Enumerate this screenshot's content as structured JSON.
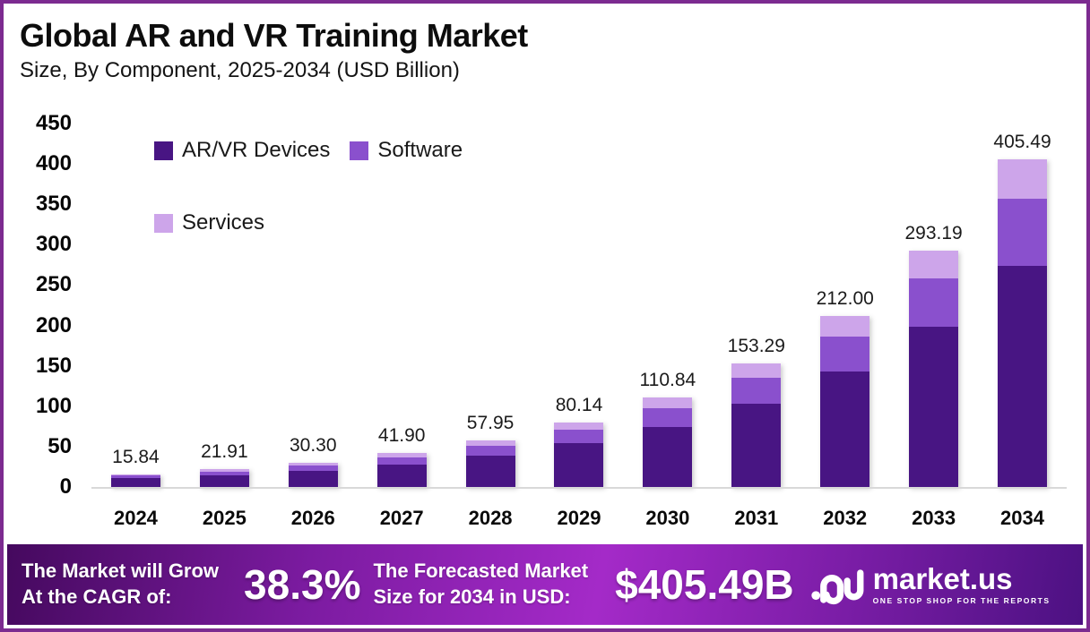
{
  "header": {
    "title": "Global AR and VR Training Market",
    "subtitle": "Size, By Component, 2025-2034 (USD Billion)"
  },
  "chart_data": {
    "type": "bar",
    "stacked": true,
    "title": "Global AR and VR Training Market Size, By Component, 2025-2034 (USD Billion)",
    "categories": [
      "2024",
      "2025",
      "2026",
      "2027",
      "2028",
      "2029",
      "2030",
      "2031",
      "2032",
      "2033",
      "2034"
    ],
    "series": [
      {
        "name": "AR/VR Devices",
        "color": "#481583",
        "values": [
          10.69,
          14.79,
          20.45,
          28.28,
          39.12,
          54.09,
          74.82,
          103.47,
          143.1,
          197.9,
          273.71
        ]
      },
      {
        "name": "Software",
        "color": "#8A50CD",
        "values": [
          3.25,
          4.49,
          6.21,
          8.59,
          11.88,
          16.43,
          22.72,
          31.42,
          43.46,
          60.1,
          83.13
        ]
      },
      {
        "name": "Services",
        "color": "#CDA5EA",
        "values": [
          1.9,
          2.63,
          3.64,
          5.03,
          6.95,
          9.62,
          13.3,
          18.4,
          25.44,
          35.19,
          48.65
        ]
      }
    ],
    "totals_labels": [
      "15.84",
      "21.91",
      "30.30",
      "41.90",
      "57.95",
      "80.14",
      "110.84",
      "153.29",
      "212.00",
      "293.19",
      "405.49"
    ],
    "ylabel": "",
    "xlabel": "",
    "ylim": [
      0,
      450
    ],
    "yticks": [
      0,
      50,
      100,
      150,
      200,
      250,
      300,
      350,
      400,
      450
    ],
    "legend_position": "top-left",
    "grid": false,
    "note": "Totals are the labeled values; per-segment values estimated from bar pixel heights."
  },
  "footer": {
    "cagr_label_line1": "The Market will Grow",
    "cagr_label_line2": "At the CAGR of:",
    "cagr_value": "38.3%",
    "forecast_label_line1": "The Forecasted Market",
    "forecast_label_line2": "Size for 2034 in USD:",
    "forecast_value": "$405.49B",
    "brand": {
      "name": "market.us",
      "tagline": "ONE STOP SHOP FOR THE REPORTS"
    }
  },
  "colors": {
    "frame_border": "#7C2B90",
    "axis_baseline": "#D9D9D9",
    "footer_gradient_start": "#45095E",
    "footer_gradient_mid": "#A42AC8",
    "footer_gradient_end": "#4C1182",
    "text_primary": "#0d0d0d",
    "footer_text": "#ffffff"
  }
}
